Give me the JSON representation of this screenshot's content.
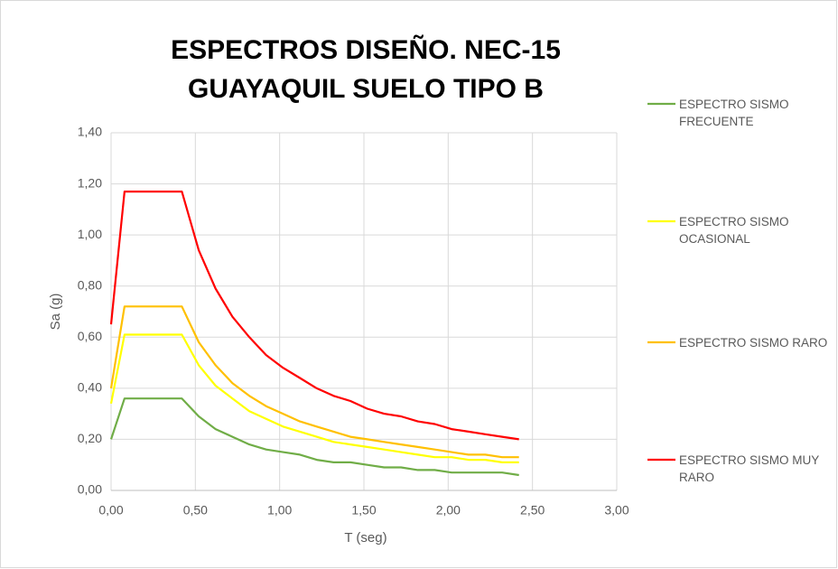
{
  "chart_data": {
    "type": "line",
    "title": [
      "ESPECTROS DISEÑO. NEC-15",
      "GUAYAQUIL SUELO TIPO B"
    ],
    "x_label": "T (seg)",
    "y_label": "Sa (g)",
    "x": [
      0,
      0.08,
      0.42,
      0.52,
      0.62,
      0.72,
      0.82,
      0.92,
      1.02,
      1.12,
      1.22,
      1.32,
      1.42,
      1.52,
      1.62,
      1.72,
      1.82,
      1.92,
      2.02,
      2.12,
      2.22,
      2.32,
      2.42
    ],
    "series": [
      {
        "name": "ESPECTRO SISMO FRECUENTE",
        "color": "#70ad47",
        "values": [
          0.2,
          0.36,
          0.36,
          0.29,
          0.24,
          0.21,
          0.18,
          0.16,
          0.15,
          0.14,
          0.12,
          0.11,
          0.11,
          0.1,
          0.09,
          0.09,
          0.08,
          0.08,
          0.07,
          0.07,
          0.07,
          0.07,
          0.06
        ]
      },
      {
        "name": "ESPECTRO SISMO OCASIONAL",
        "color": "#ffff00",
        "values": [
          0.34,
          0.61,
          0.61,
          0.49,
          0.41,
          0.36,
          0.31,
          0.28,
          0.25,
          0.23,
          0.21,
          0.19,
          0.18,
          0.17,
          0.16,
          0.15,
          0.14,
          0.13,
          0.13,
          0.12,
          0.12,
          0.11,
          0.11
        ]
      },
      {
        "name": "ESPECTRO SISMO RARO",
        "color": "#ffc000",
        "values": [
          0.4,
          0.72,
          0.72,
          0.58,
          0.49,
          0.42,
          0.37,
          0.33,
          0.3,
          0.27,
          0.25,
          0.23,
          0.21,
          0.2,
          0.19,
          0.18,
          0.17,
          0.16,
          0.15,
          0.14,
          0.14,
          0.13,
          0.13
        ]
      },
      {
        "name": "ESPECTRO SISMO MUY RARO",
        "color": "#ff0000",
        "values": [
          0.65,
          1.17,
          1.17,
          0.94,
          0.79,
          0.68,
          0.6,
          0.53,
          0.48,
          0.44,
          0.4,
          0.37,
          0.35,
          0.32,
          0.3,
          0.29,
          0.27,
          0.26,
          0.24,
          0.23,
          0.22,
          0.21,
          0.2
        ]
      }
    ],
    "xlim": [
      0,
      3
    ],
    "xticks": [
      {
        "value": 0,
        "label": "0,00"
      },
      {
        "value": 0.5,
        "label": "0,50"
      },
      {
        "value": 1,
        "label": "1,00"
      },
      {
        "value": 1.5,
        "label": "1,50"
      },
      {
        "value": 2,
        "label": "2,00"
      },
      {
        "value": 2.5,
        "label": "2,50"
      },
      {
        "value": 3,
        "label": "3,00"
      }
    ],
    "ylim": [
      0,
      1.4
    ],
    "yticks": [
      {
        "value": 0,
        "label": "0,00"
      },
      {
        "value": 0.2,
        "label": "0,20"
      },
      {
        "value": 0.4,
        "label": "0,40"
      },
      {
        "value": 0.6,
        "label": "0,60"
      },
      {
        "value": 0.8,
        "label": "0,80"
      },
      {
        "value": 1,
        "label": "1,00"
      },
      {
        "value": 1.2,
        "label": "1,20"
      },
      {
        "value": 1.4,
        "label": "1,40"
      }
    ],
    "grid": true,
    "legend": "right"
  }
}
